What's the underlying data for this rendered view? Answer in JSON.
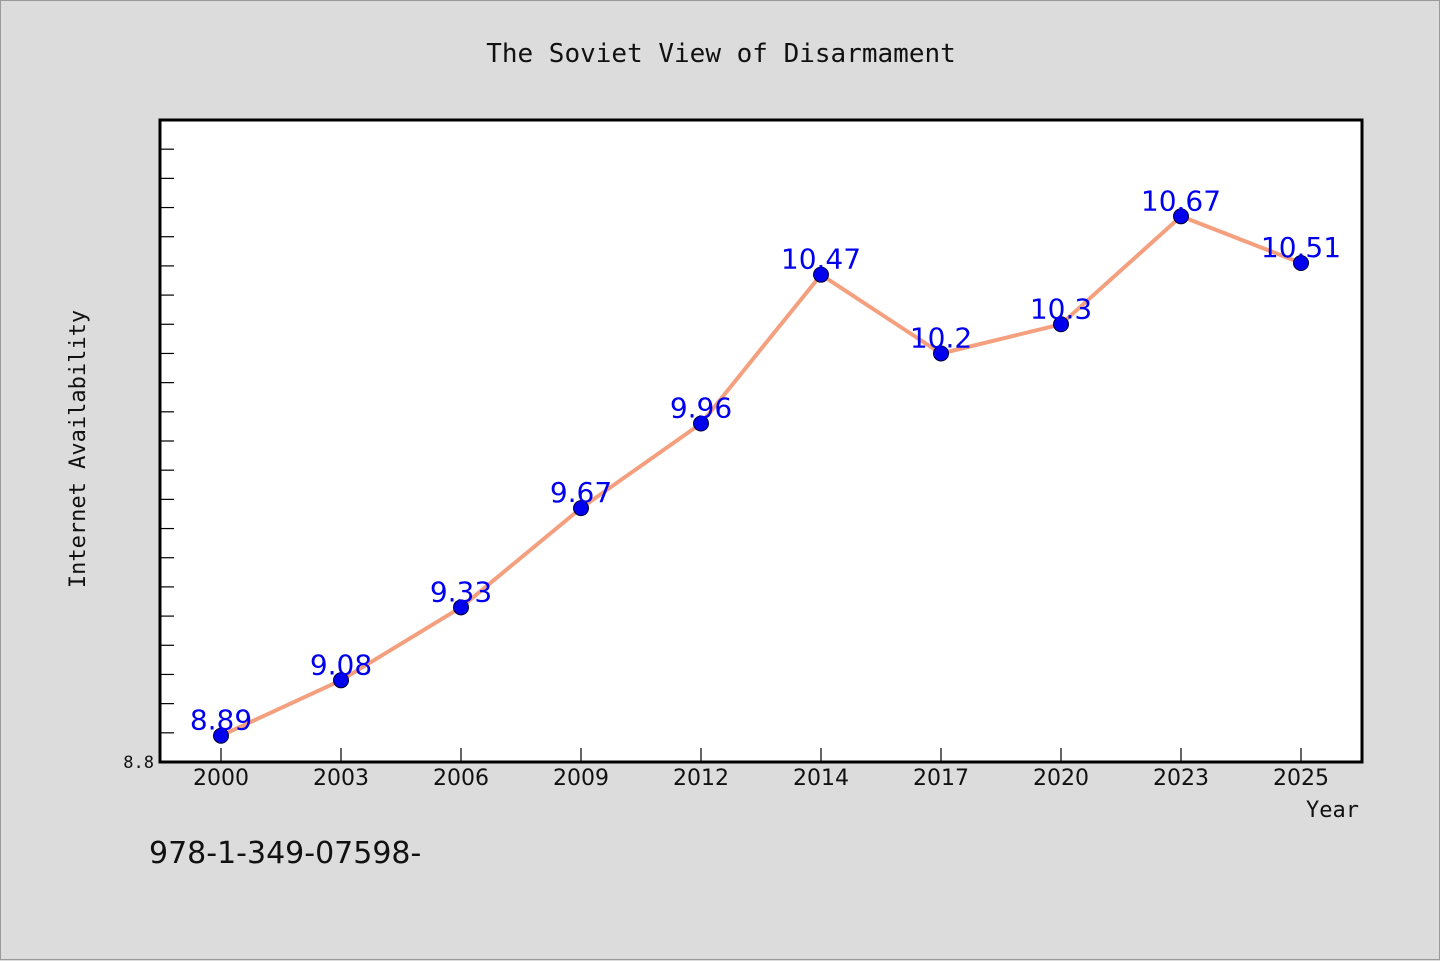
{
  "chart_data": {
    "type": "line",
    "title": "The Soviet View of Disarmament",
    "xlabel": "Year",
    "ylabel": "Internet Availability",
    "categories": [
      "2000",
      "2003",
      "2006",
      "2009",
      "2012",
      "2014",
      "2017",
      "2020",
      "2023",
      "2025"
    ],
    "series": [
      {
        "values": [
          8.89,
          9.08,
          9.33,
          9.67,
          9.96,
          10.47,
          10.2,
          10.3,
          10.67,
          10.51
        ],
        "data_labels": [
          "8.89",
          "9.08",
          "9.33",
          "9.67",
          "9.96",
          "10.47",
          "10.2",
          "10.3",
          "10.67",
          "10.51"
        ],
        "line_color": "#f4a07f",
        "marker_color": "#0000ee",
        "label_color": "#0000ee"
      }
    ],
    "ylim": [
      8.8,
      11.0
    ],
    "y_tick_labels": [
      "8.8"
    ],
    "y_minor_step": 0.1,
    "grid": false,
    "legend": "none",
    "plot_background": "#ffffff",
    "page_background": "#dcdcdc"
  },
  "footer": {
    "isbn_text": "978-1-349-07598-"
  }
}
